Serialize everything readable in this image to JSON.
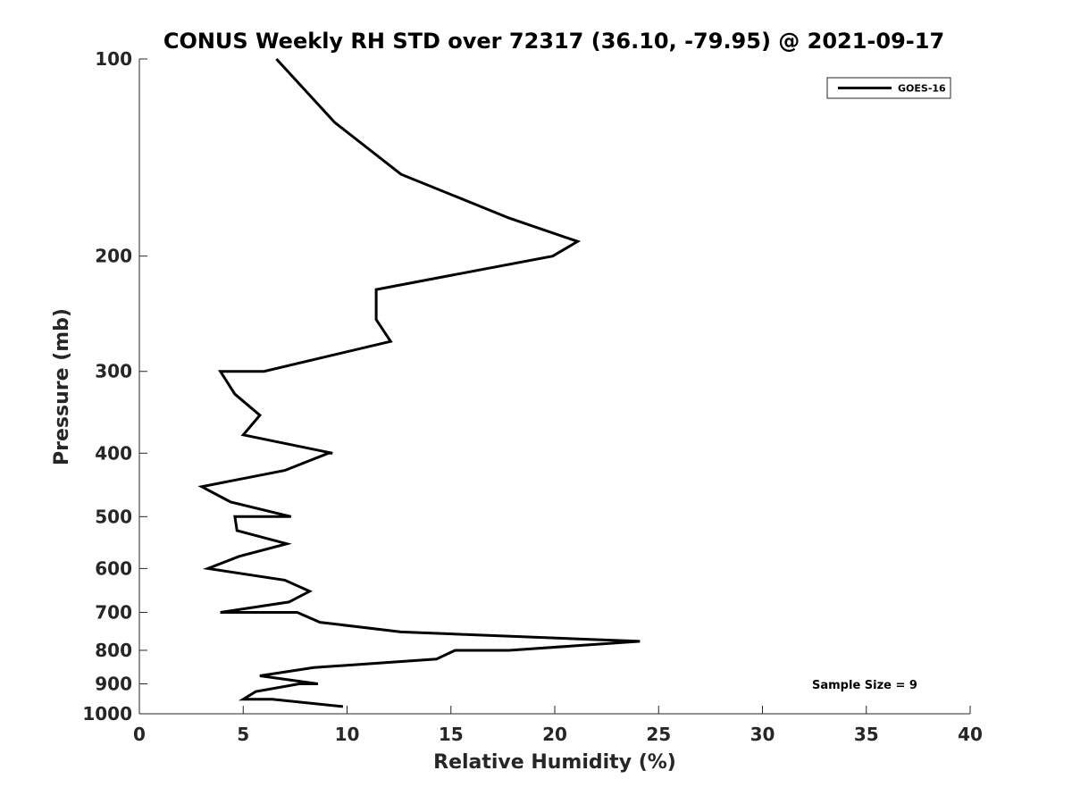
{
  "chart_data": {
    "type": "line",
    "title": "CONUS Weekly RH STD over 72317 (36.10, -79.95) @ 2021-09-17",
    "xlabel": "Relative Humidity (%)",
    "ylabel": "Pressure (mb)",
    "xlim": [
      0,
      40
    ],
    "ylim": [
      1000,
      100
    ],
    "yscale": "log-reversed",
    "x_ticks": [
      0,
      5,
      10,
      15,
      20,
      25,
      30,
      35,
      40
    ],
    "x_tick_labels": [
      "0",
      "5",
      "10",
      "15",
      "20",
      "25",
      "30",
      "35",
      "40"
    ],
    "y_ticks": [
      100,
      200,
      300,
      400,
      500,
      600,
      700,
      800,
      900,
      1000
    ],
    "y_tick_labels": [
      "100",
      "200",
      "300",
      "400",
      "500",
      "600",
      "700",
      "800",
      "900",
      "1000"
    ],
    "grid": false,
    "legend_position": "top-right",
    "line_color": "#000000",
    "series": [
      {
        "name": "GOES-16",
        "x": [
          6.6,
          9.4,
          12.6,
          17.8,
          21.1,
          19.9,
          11.4,
          11.4,
          12.1,
          6.0,
          3.9,
          4.6,
          5.8,
          5.0,
          9.3,
          9.1,
          7.0,
          3.0,
          4.4,
          7.3,
          4.6,
          4.7,
          7.1,
          4.8,
          3.3,
          7.0,
          8.2,
          7.2,
          3.9,
          7.6,
          8.7,
          12.6,
          24.1,
          17.8,
          15.2,
          14.3,
          8.4,
          5.8,
          8.6,
          7.7,
          5.6,
          5.0,
          6.4,
          9.8
        ],
        "y": [
          100,
          125,
          150,
          175,
          190,
          200,
          225,
          250,
          270,
          300,
          300,
          325,
          350,
          375,
          400,
          400,
          425,
          450,
          475,
          500,
          500,
          525,
          550,
          575,
          600,
          625,
          650,
          675,
          700,
          700,
          725,
          750,
          775,
          800,
          800,
          825,
          850,
          875,
          900,
          900,
          925,
          950,
          950,
          975
        ]
      }
    ],
    "annotation": "Sample Size = 9"
  }
}
